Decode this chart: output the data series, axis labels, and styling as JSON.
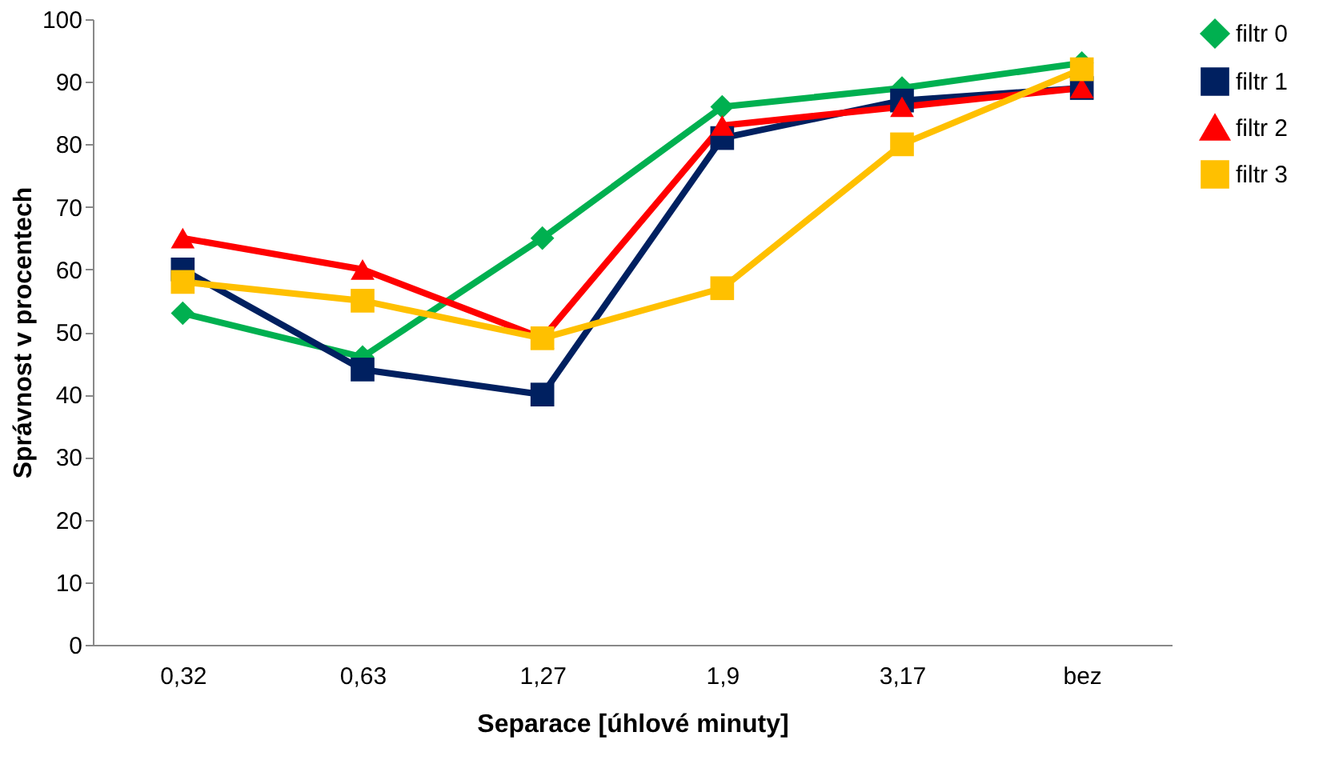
{
  "chart_data": {
    "type": "line",
    "xlabel": "Separace  [úhlové minuty]",
    "ylabel": "Správnost v procentech",
    "categories": [
      "0,32",
      "0,63",
      "1,27",
      "1,9",
      "3,17",
      "bez"
    ],
    "series": [
      {
        "name": "filtr 0",
        "color": "#00b050",
        "marker": "diamond",
        "values": [
          53,
          46,
          65,
          86,
          89,
          93
        ]
      },
      {
        "name": "filtr 1",
        "color": "#002060",
        "marker": "square",
        "values": [
          60,
          44,
          40,
          81,
          87,
          89
        ]
      },
      {
        "name": "filtr 2",
        "color": "#ff0000",
        "marker": "triangle",
        "values": [
          65,
          60,
          49,
          83,
          86,
          89
        ]
      },
      {
        "name": "filtr 3",
        "color": "#ffc000",
        "marker": "square",
        "values": [
          58,
          55,
          49,
          57,
          80,
          92
        ]
      }
    ],
    "ylim": [
      0,
      100
    ],
    "yticks": [
      0,
      10,
      20,
      30,
      40,
      50,
      60,
      70,
      80,
      90,
      100
    ],
    "grid": false,
    "legend": "right",
    "line_style": "solid"
  }
}
